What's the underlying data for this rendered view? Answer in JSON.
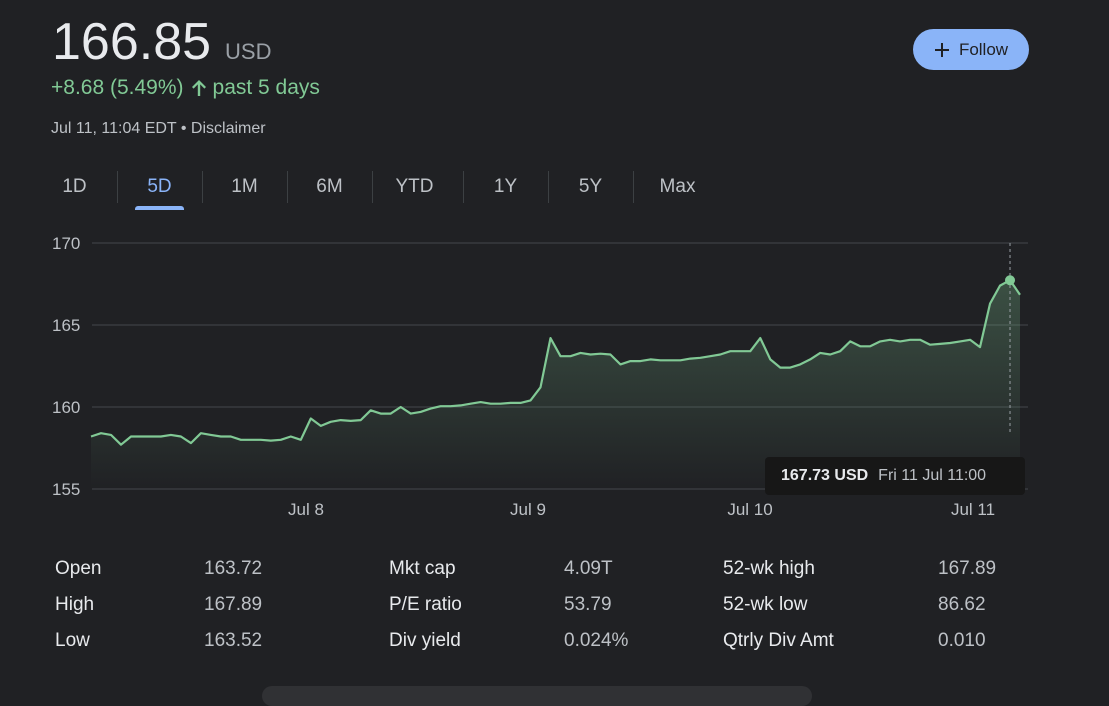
{
  "quote": {
    "price": "166.85",
    "currency": "USD",
    "change": "+8.68 (5.49%)",
    "period": "past 5 days",
    "timestamp": "Jul 11, 11:04 EDT",
    "separator": "•",
    "disclaimer": "Disclaimer"
  },
  "follow_button": {
    "label": "Follow",
    "icon": "plus-icon"
  },
  "tabs": [
    {
      "label": "1D",
      "active": false
    },
    {
      "label": "5D",
      "active": true
    },
    {
      "label": "1M",
      "active": false
    },
    {
      "label": "6M",
      "active": false
    },
    {
      "label": "YTD",
      "active": false
    },
    {
      "label": "1Y",
      "active": false
    },
    {
      "label": "5Y",
      "active": false
    },
    {
      "label": "Max",
      "active": false
    }
  ],
  "tooltip": {
    "price": "167.73 USD",
    "date": "Fri 11 Jul 11:00"
  },
  "colors": {
    "line": "#81c995",
    "accent": "#8ab4f8",
    "background": "#202124",
    "grid": "#3c4043"
  },
  "chart_data": {
    "type": "area",
    "ylim": [
      155,
      170
    ],
    "yticks": [
      155,
      160,
      165,
      170
    ],
    "ytick_labels": [
      "155",
      "160",
      "165",
      "170"
    ],
    "xtick_labels": [
      "Jul 8",
      "Jul 9",
      "Jul 10",
      "Jul 11"
    ],
    "series": [
      {
        "values": [
          158.2,
          158.4,
          158.3,
          157.7,
          158.2,
          158.2,
          158.2,
          158.2,
          158.3,
          158.2,
          157.8,
          158.4,
          158.3,
          158.2,
          158.2,
          158.0,
          158.0,
          158.0,
          157.95,
          158.0,
          158.2,
          158.0,
          159.3,
          158.85,
          159.1,
          159.2,
          159.15,
          159.2,
          159.8,
          159.6,
          159.6,
          160.0,
          159.6,
          159.7,
          159.9,
          160.05,
          160.05,
          160.1,
          160.2,
          160.3,
          160.2,
          160.2,
          160.25,
          160.25,
          160.4,
          161.2,
          164.2,
          163.1,
          163.1,
          163.3,
          163.2,
          163.25,
          163.2,
          162.6,
          162.8,
          162.8,
          162.9,
          162.85,
          162.85,
          162.85,
          162.95,
          163.0,
          163.1,
          163.2,
          163.4,
          163.4,
          163.4,
          164.2,
          162.9,
          162.4,
          162.4,
          162.6,
          162.9,
          163.3,
          163.2,
          163.4,
          164.0,
          163.7,
          163.7,
          164.0,
          164.1,
          164.0,
          164.1,
          164.1,
          163.8,
          163.85,
          163.9,
          164.0,
          164.1,
          163.65,
          166.3,
          167.4,
          167.73,
          166.85
        ],
        "highlight_index": 92
      }
    ]
  },
  "stats": [
    {
      "label": "Open",
      "value": "163.72"
    },
    {
      "label": "High",
      "value": "167.89"
    },
    {
      "label": "Low",
      "value": "163.52"
    },
    {
      "label": "Mkt cap",
      "value": "4.09T"
    },
    {
      "label": "P/E ratio",
      "value": "53.79"
    },
    {
      "label": "Div yield",
      "value": "0.024%"
    },
    {
      "label": "52-wk high",
      "value": "167.89"
    },
    {
      "label": "52-wk low",
      "value": "86.62"
    },
    {
      "label": "Qtrly Div Amt",
      "value": "0.010"
    }
  ]
}
